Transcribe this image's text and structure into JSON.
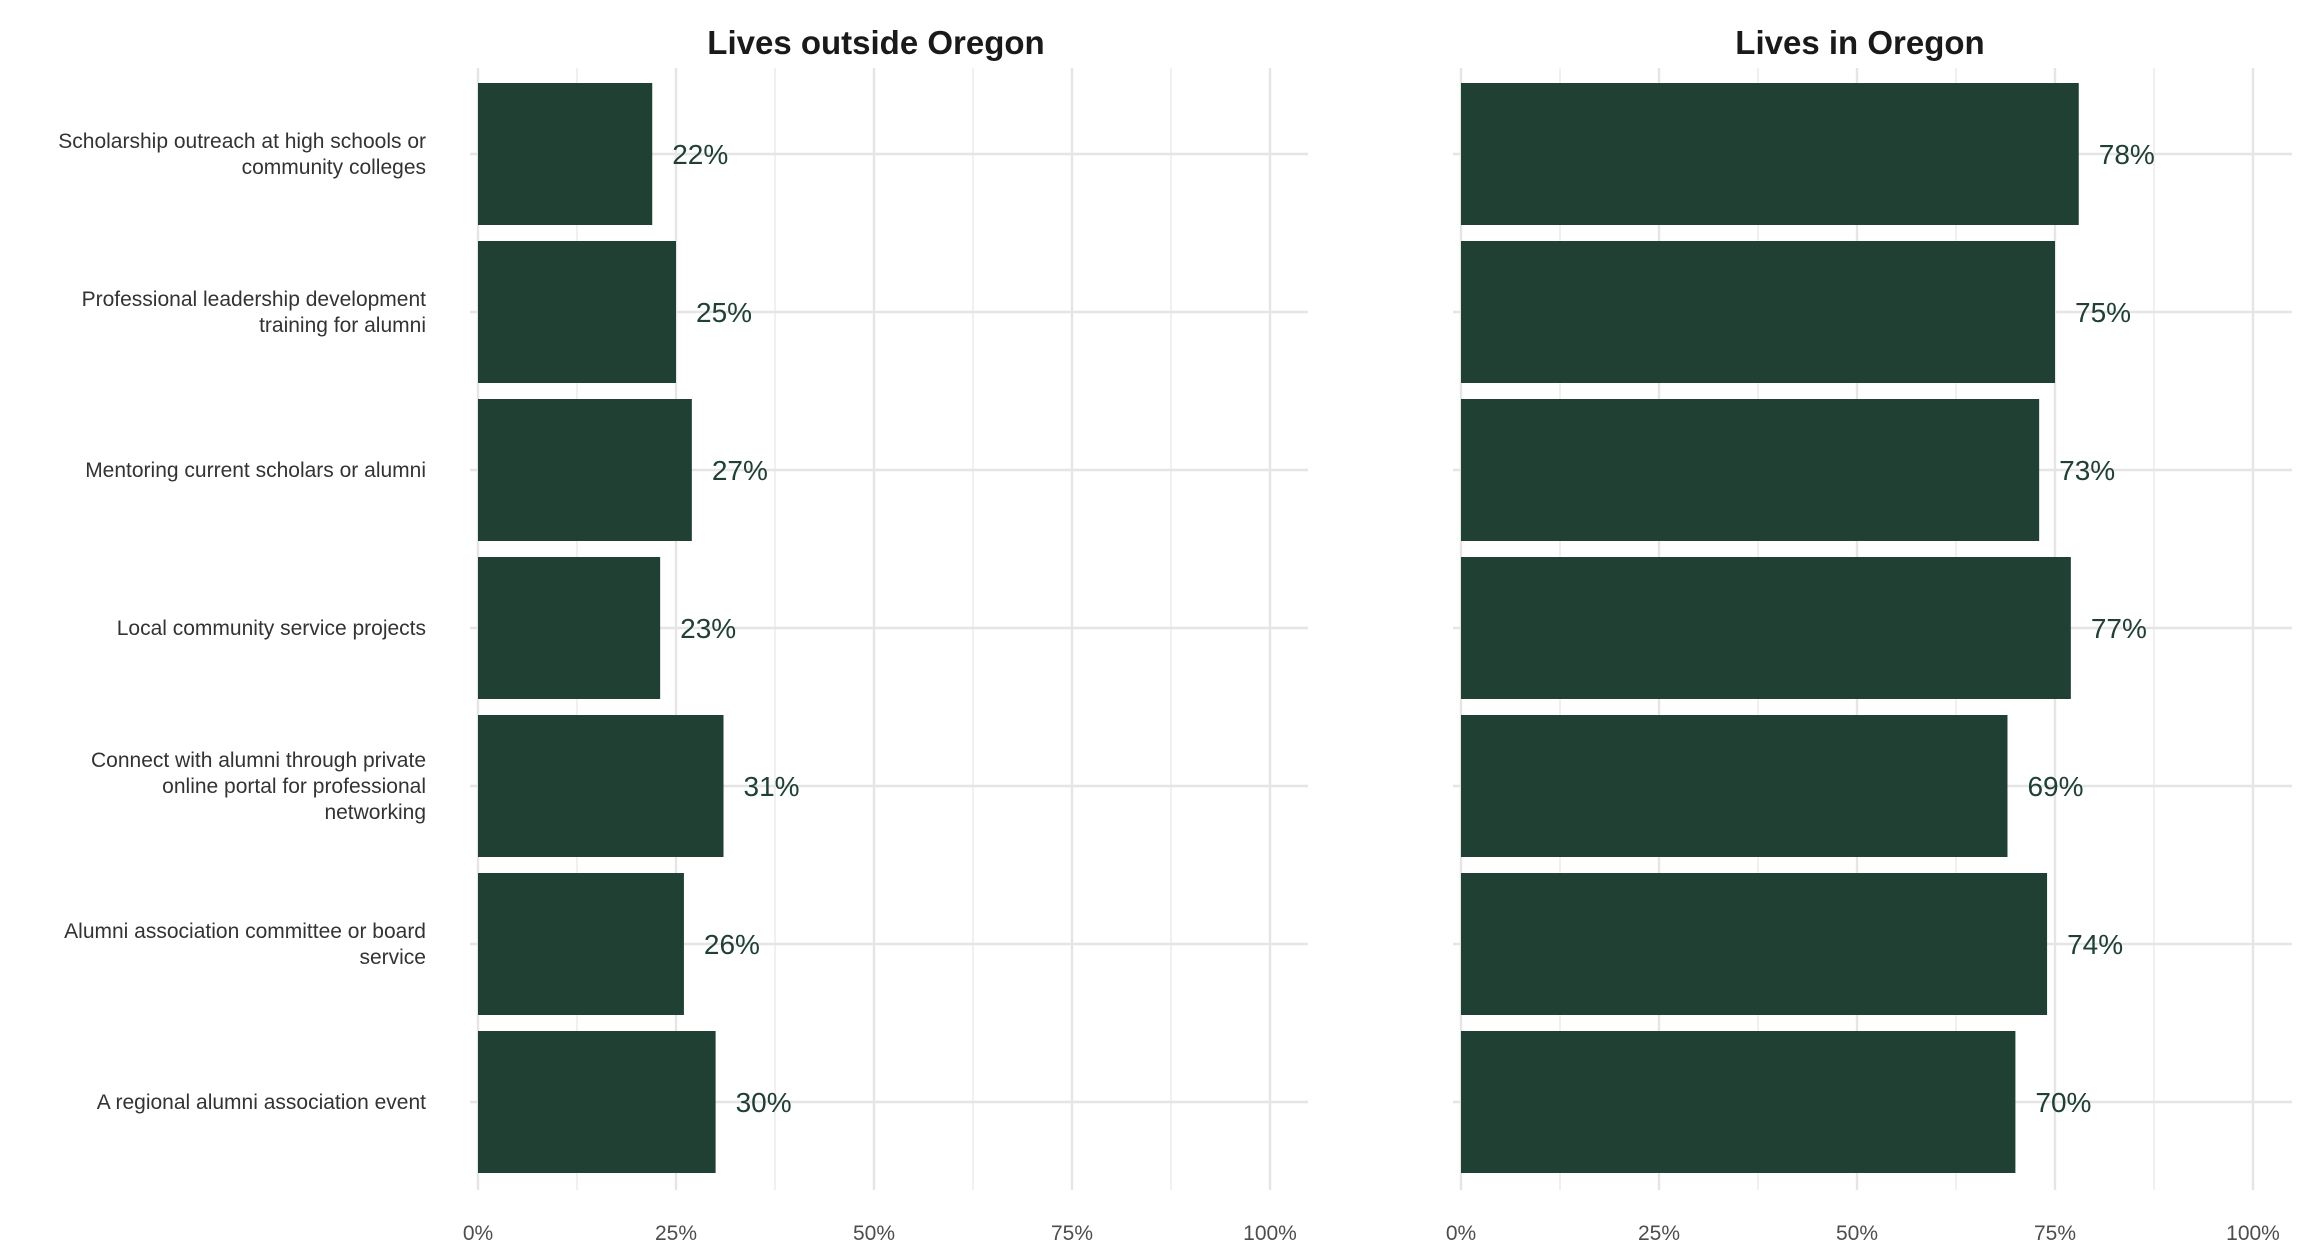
{
  "chart_data": {
    "type": "bar",
    "orientation": "horizontal",
    "categories": [
      "Scholarship outreach at high schools or community colleges",
      "Professional leadership development training for alumni",
      "Mentoring current scholars or alumni",
      "Local community service projects",
      "Connect with alumni through private online portal for professional networking",
      "Alumni association committee or board service",
      "A regional alumni association event"
    ],
    "category_label_lines": [
      [
        "Scholarship outreach at high schools or",
        "community colleges"
      ],
      [
        "Professional leadership development",
        "training for alumni"
      ],
      [
        "Mentoring current scholars or alumni"
      ],
      [
        "Local community service projects"
      ],
      [
        "Connect with alumni through private",
        "online portal for professional",
        "networking"
      ],
      [
        "Alumni association committee or board",
        "service"
      ],
      [
        "A regional alumni association event"
      ]
    ],
    "panels": [
      {
        "title": "Lives outside Oregon",
        "values": [
          22,
          25,
          27,
          23,
          31,
          26,
          30
        ],
        "value_labels": [
          "22%",
          "25%",
          "27%",
          "23%",
          "31%",
          "26%",
          "30%"
        ]
      },
      {
        "title": "Lives in Oregon",
        "values": [
          78,
          75,
          73,
          77,
          69,
          74,
          70
        ],
        "value_labels": [
          "78%",
          "75%",
          "73%",
          "77%",
          "69%",
          "74%",
          "70%"
        ]
      }
    ],
    "xlim": [
      0,
      105
    ],
    "x_ticks": [
      0,
      25,
      50,
      75,
      100
    ],
    "x_tick_labels": [
      "0%",
      "25%",
      "50%",
      "75%",
      "100%"
    ],
    "xlabel": "",
    "ylabel": "",
    "grid": true,
    "legend": "none",
    "colors": {
      "bar": "#1f4033",
      "value_label": "#1f4033",
      "grid": "#e5e5e5"
    }
  }
}
